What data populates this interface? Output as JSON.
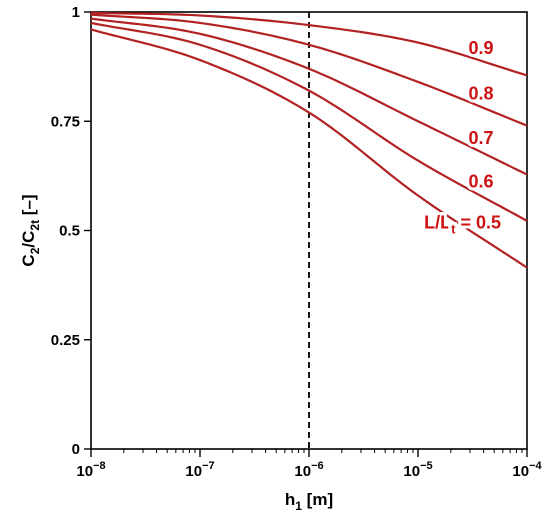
{
  "chart_data": {
    "type": "line",
    "x_scale": "log",
    "xlim": [
      1e-08,
      0.0001
    ],
    "ylim": [
      0,
      1
    ],
    "xlabel": {
      "base": "h",
      "sub": "1",
      "unit": " [m]"
    },
    "ylabel": {
      "base1": "C",
      "sub1": "2",
      "sep": "/C",
      "sub2": "2t",
      "unit": " [–]"
    },
    "x_ticks": [
      {
        "value": 1e-08,
        "base": "10",
        "exp": "−8"
      },
      {
        "value": 1e-07,
        "base": "10",
        "exp": "−7"
      },
      {
        "value": 1e-06,
        "base": "10",
        "exp": "−6"
      },
      {
        "value": 1e-05,
        "base": "10",
        "exp": "−5"
      },
      {
        "value": 0.0001,
        "base": "10",
        "exp": "−4"
      }
    ],
    "y_ticks": [
      {
        "value": 0,
        "label": "0"
      },
      {
        "value": 0.25,
        "label": "0.25"
      },
      {
        "value": 0.5,
        "label": "0.5"
      },
      {
        "value": 0.75,
        "label": "0.75"
      },
      {
        "value": 1,
        "label": "1"
      }
    ],
    "grid": false,
    "reference_line": {
      "x": 1e-06,
      "style": "dashed"
    },
    "line_color": "#b22222",
    "label_color": "#cc1111",
    "series": [
      {
        "name": "0.9",
        "x": [
          1e-08,
          1e-07,
          1e-06,
          1e-05,
          0.0001
        ],
        "y": [
          0.998,
          0.992,
          0.97,
          0.93,
          0.855
        ]
      },
      {
        "name": "0.8",
        "x": [
          1e-08,
          1e-07,
          1e-06,
          1e-05,
          0.0001
        ],
        "y": [
          0.994,
          0.975,
          0.925,
          0.84,
          0.74
        ]
      },
      {
        "name": "0.7",
        "x": [
          1e-08,
          1e-07,
          1e-06,
          1e-05,
          0.0001
        ],
        "y": [
          0.985,
          0.95,
          0.87,
          0.75,
          0.628
        ]
      },
      {
        "name": "0.6",
        "x": [
          1e-08,
          1e-07,
          1e-06,
          1e-05,
          0.0001
        ],
        "y": [
          0.975,
          0.925,
          0.82,
          0.66,
          0.522
        ]
      },
      {
        "name": "0.5",
        "x": [
          1e-08,
          1e-07,
          1e-06,
          1e-05,
          0.0001
        ],
        "y": [
          0.96,
          0.89,
          0.77,
          0.58,
          0.415
        ]
      }
    ],
    "series_label_prefix": "L/L",
    "series_label_prefix_sub": "t",
    "series_label_eq": " = "
  }
}
